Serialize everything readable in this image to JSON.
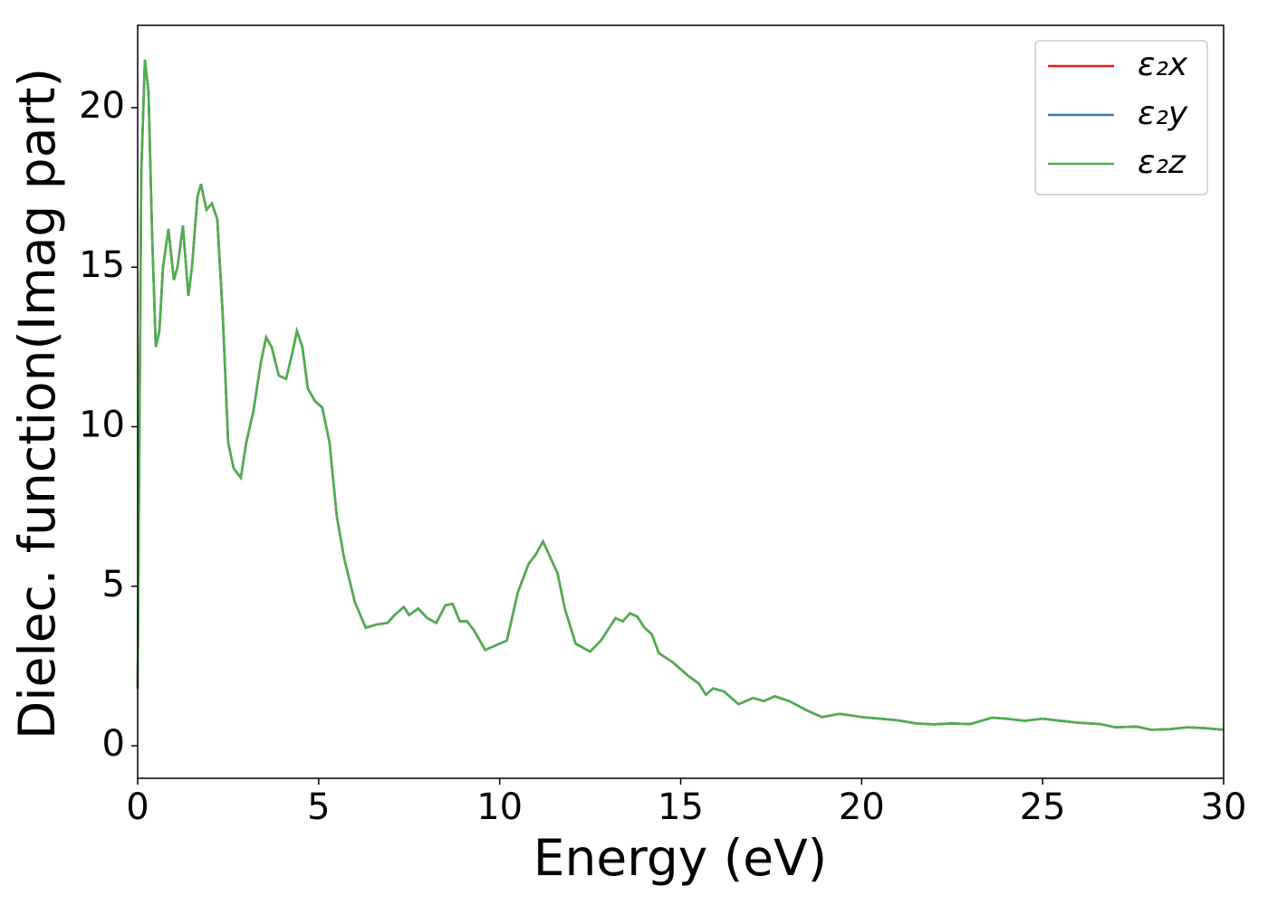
{
  "chart_data": {
    "type": "line",
    "xlabel": "Energy (eV)",
    "ylabel": "Dielec. function(Imag part)",
    "x": [
      0,
      0.05,
      0.1,
      0.2,
      0.3,
      0.4,
      0.5,
      0.6,
      0.7,
      0.85,
      1.0,
      1.1,
      1.25,
      1.4,
      1.5,
      1.65,
      1.75,
      1.9,
      2.05,
      2.2,
      2.35,
      2.5,
      2.65,
      2.85,
      3.0,
      3.2,
      3.4,
      3.55,
      3.7,
      3.9,
      4.1,
      4.25,
      4.4,
      4.55,
      4.7,
      4.9,
      5.1,
      5.3,
      5.5,
      5.7,
      6.0,
      6.3,
      6.6,
      6.9,
      7.1,
      7.35,
      7.5,
      7.75,
      8.0,
      8.25,
      8.5,
      8.7,
      8.9,
      9.1,
      9.3,
      9.6,
      9.9,
      10.2,
      10.5,
      10.8,
      11.0,
      11.2,
      11.4,
      11.6,
      11.8,
      12.1,
      12.5,
      12.8,
      13.2,
      13.4,
      13.6,
      13.8,
      14.0,
      14.2,
      14.4,
      14.8,
      15.2,
      15.5,
      15.7,
      15.9,
      16.2,
      16.6,
      17.0,
      17.3,
      17.6,
      18.0,
      18.5,
      18.9,
      19.4,
      20.0,
      20.5,
      21.0,
      21.5,
      22.0,
      22.5,
      23.0,
      23.6,
      24.0,
      24.5,
      25.0,
      25.5,
      26.0,
      26.6,
      27.0,
      27.6,
      28.0,
      28.5,
      29.0,
      29.5,
      30
    ],
    "series": [
      {
        "name": "ε₂x",
        "color": "#e41a1c",
        "values": [
          1.8,
          10,
          18,
          21.5,
          20.5,
          16,
          12.5,
          13,
          15,
          16.2,
          14.6,
          15,
          16.3,
          14.1,
          15,
          17.2,
          17.6,
          16.8,
          17,
          16.5,
          13.5,
          9.5,
          8.7,
          8.4,
          9.5,
          10.5,
          12,
          12.8,
          12.5,
          11.6,
          11.5,
          12.2,
          13,
          12.5,
          11.2,
          10.8,
          10.6,
          9.5,
          7.2,
          5.9,
          4.5,
          3.7,
          3.8,
          3.85,
          4.1,
          4.35,
          4.1,
          4.3,
          4.0,
          3.85,
          4.4,
          4.45,
          3.9,
          3.9,
          3.6,
          3.0,
          3.15,
          3.3,
          4.8,
          5.7,
          6.0,
          6.4,
          5.9,
          5.4,
          4.3,
          3.2,
          2.95,
          3.3,
          4.0,
          3.9,
          4.15,
          4.05,
          3.7,
          3.5,
          2.9,
          2.6,
          2.2,
          1.95,
          1.6,
          1.8,
          1.7,
          1.3,
          1.5,
          1.4,
          1.55,
          1.4,
          1.1,
          0.9,
          1.0,
          0.9,
          0.85,
          0.8,
          0.7,
          0.67,
          0.7,
          0.68,
          0.88,
          0.85,
          0.78,
          0.85,
          0.78,
          0.72,
          0.68,
          0.58,
          0.6,
          0.5,
          0.52,
          0.58,
          0.55,
          0.5
        ]
      },
      {
        "name": "ε₂y",
        "color": "#377eb8",
        "values": [
          1.8,
          10,
          18,
          21.5,
          20.5,
          16,
          12.5,
          13,
          15,
          16.2,
          14.6,
          15,
          16.3,
          14.1,
          15,
          17.2,
          17.6,
          16.8,
          17,
          16.5,
          13.5,
          9.5,
          8.7,
          8.4,
          9.5,
          10.5,
          12,
          12.8,
          12.5,
          11.6,
          11.5,
          12.2,
          13,
          12.5,
          11.2,
          10.8,
          10.6,
          9.5,
          7.2,
          5.9,
          4.5,
          3.7,
          3.8,
          3.85,
          4.1,
          4.35,
          4.1,
          4.3,
          4.0,
          3.85,
          4.4,
          4.45,
          3.9,
          3.9,
          3.6,
          3.0,
          3.15,
          3.3,
          4.8,
          5.7,
          6.0,
          6.4,
          5.9,
          5.4,
          4.3,
          3.2,
          2.95,
          3.3,
          4.0,
          3.9,
          4.15,
          4.05,
          3.7,
          3.5,
          2.9,
          2.6,
          2.2,
          1.95,
          1.6,
          1.8,
          1.7,
          1.3,
          1.5,
          1.4,
          1.55,
          1.4,
          1.1,
          0.9,
          1.0,
          0.9,
          0.85,
          0.8,
          0.7,
          0.67,
          0.7,
          0.68,
          0.88,
          0.85,
          0.78,
          0.85,
          0.78,
          0.72,
          0.68,
          0.58,
          0.6,
          0.5,
          0.52,
          0.58,
          0.55,
          0.5
        ]
      },
      {
        "name": "ε₂z",
        "color": "#4daf4a",
        "values": [
          1.8,
          10,
          18,
          21.5,
          20.5,
          16,
          12.5,
          13,
          15,
          16.2,
          14.6,
          15,
          16.3,
          14.1,
          15,
          17.2,
          17.6,
          16.8,
          17,
          16.5,
          13.5,
          9.5,
          8.7,
          8.4,
          9.5,
          10.5,
          12,
          12.8,
          12.5,
          11.6,
          11.5,
          12.2,
          13,
          12.5,
          11.2,
          10.8,
          10.6,
          9.5,
          7.2,
          5.9,
          4.5,
          3.7,
          3.8,
          3.85,
          4.1,
          4.35,
          4.1,
          4.3,
          4.0,
          3.85,
          4.4,
          4.45,
          3.9,
          3.9,
          3.6,
          3.0,
          3.15,
          3.3,
          4.8,
          5.7,
          6.0,
          6.4,
          5.9,
          5.4,
          4.3,
          3.2,
          2.95,
          3.3,
          4.0,
          3.9,
          4.15,
          4.05,
          3.7,
          3.5,
          2.9,
          2.6,
          2.2,
          1.95,
          1.6,
          1.8,
          1.7,
          1.3,
          1.5,
          1.4,
          1.55,
          1.4,
          1.1,
          0.9,
          1.0,
          0.9,
          0.85,
          0.8,
          0.7,
          0.67,
          0.7,
          0.68,
          0.88,
          0.85,
          0.78,
          0.85,
          0.78,
          0.72,
          0.68,
          0.58,
          0.6,
          0.5,
          0.52,
          0.58,
          0.55,
          0.5
        ]
      }
    ],
    "xlim": [
      0,
      30
    ],
    "xticks": [
      0,
      5,
      10,
      15,
      20,
      25,
      30
    ],
    "ylim": [
      -1.02,
      22.58
    ],
    "yticks": [
      0,
      5,
      10,
      15,
      20
    ],
    "legend": "upper right",
    "grid": false
  }
}
